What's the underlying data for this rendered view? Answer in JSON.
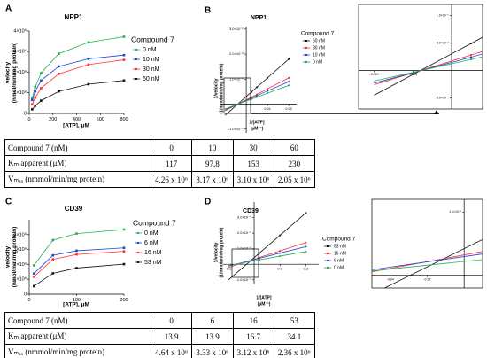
{
  "chart_data": [
    {
      "type": "line",
      "label": "A",
      "title": "NPP1",
      "xlabel": [
        "[ATP], μM"
      ],
      "ylabel": [
        "velocity",
        "(nmol/min/mg protein)"
      ],
      "legend_title": "Compound 7",
      "x": [
        25,
        50,
        100,
        250,
        500,
        800
      ],
      "series": [
        {
          "name": "0 nM",
          "color": "#22b14c",
          "values": [
            750000,
            1280000,
            1960000,
            2900000,
            3450000,
            3720000
          ]
        },
        {
          "name": "10 nM",
          "color": "#1f3fe0",
          "values": [
            650000,
            1070000,
            1600000,
            2280000,
            2650000,
            2830000
          ]
        },
        {
          "name": "30 nM",
          "color": "#ff3030",
          "values": [
            440000,
            760000,
            1230000,
            1920000,
            2370000,
            2600000
          ]
        },
        {
          "name": "60 nM",
          "color": "#111111",
          "values": [
            200000,
            370000,
            620000,
            1070000,
            1420000,
            1600000
          ]
        }
      ],
      "xlim": [
        0,
        800
      ],
      "xticks": [
        0,
        200,
        400,
        600,
        800
      ],
      "ylim": [
        0,
        4000000
      ],
      "yticks": [
        0,
        {
          "value": 1000000,
          "label": "1×10⁶"
        },
        {
          "value": 2000000,
          "label": "2×10⁶"
        },
        {
          "value": 3000000,
          "label": "3×10⁶"
        },
        {
          "value": 4000000,
          "label": "4×10⁶"
        }
      ]
    },
    {
      "type": "line",
      "label": "B",
      "title": "NPP1",
      "xlabel": [
        "1/[ATP]",
        "(μM⁻¹)"
      ],
      "ylabel": [
        "1/velocity",
        "(1/nmol/min/mg protein)"
      ],
      "legend_title": "Compound 7",
      "x": [
        -0.01,
        0.0025,
        0.005,
        0.01,
        0.02
      ],
      "series": [
        {
          "name": "60 nM",
          "color": "#111111",
          "values": [
            -4.5e-07,
            4.9e-07,
            6.8e-07,
            1.05e-06,
            1.8e-06
          ]
        },
        {
          "name": "30 nM",
          "color": "#ff3030",
          "values": [
            -2.6e-07,
            2.8e-07,
            3.9e-07,
            6.1e-07,
            1.05e-06
          ]
        },
        {
          "name": "10 nM",
          "color": "#1f3fe0",
          "values": [
            -2.3e-07,
            2.4e-07,
            3.4e-07,
            5.3e-07,
            9e-07
          ]
        },
        {
          "name": "0 nM",
          "color": "#22b14c",
          "values": [
            -1.9e-07,
            2e-07,
            2.8e-07,
            4.4e-07,
            7.5e-07
          ]
        }
      ],
      "xlim": [
        -0.0117,
        0.0237
      ],
      "xticks": [
        0.01,
        0.02
      ],
      "ylim": [
        -1.15e-06,
        3.1e-06
      ],
      "yticks": [
        {
          "value": -1e-06,
          "label": "-1.0×10⁻⁶"
        },
        {
          "value": 1e-06,
          "label": "1.0×10⁻⁶"
        },
        {
          "value": 2e-06,
          "label": "2.0×10⁻⁶"
        },
        {
          "value": 3e-06,
          "label": "3.0×10⁻⁶"
        }
      ],
      "inset": {
        "xlim": [
          -0.012,
          0.004
        ],
        "ylim": [
          -7e-07,
          1.2e-06
        ],
        "xticks": [
          {
            "value": -0.01,
            "label": "-0.010"
          },
          {
            "value": -0.005,
            "label": "-0.005"
          }
        ],
        "yticks": [
          {
            "value": 1e-06,
            "label": "1.0×10⁻⁶"
          },
          {
            "value": 5e-07,
            "label": "5.0×10⁻⁷"
          },
          {
            "value": -5e-07,
            "label": "-5.0×10⁻⁷"
          }
        ]
      }
    },
    {
      "type": "line",
      "label": "C",
      "title": "CD39",
      "xlabel": [
        "[ATP], μM"
      ],
      "ylabel": [
        "velocity",
        "(nmol/min/mg protein)"
      ],
      "legend_title": "Compound 7",
      "x": [
        10,
        50,
        100,
        200
      ],
      "series": [
        {
          "name": "0 nM",
          "color": "#22b14c",
          "values": [
            1940000,
            3630000,
            4070000,
            4340000
          ]
        },
        {
          "name": "6 nM",
          "color": "#1f3fe0",
          "values": [
            1390000,
            2610000,
            2920000,
            3110000
          ]
        },
        {
          "name": "16 nM",
          "color": "#ff3030",
          "values": [
            1170000,
            2340000,
            2670000,
            2880000
          ]
        },
        {
          "name": "53 nM",
          "color": "#111111",
          "values": [
            540000,
            1400000,
            1760000,
            2020000
          ]
        }
      ],
      "xlim": [
        0,
        200
      ],
      "xticks": [
        0,
        100,
        200
      ],
      "ylim": [
        0,
        5000000
      ],
      "yticks": [
        0,
        {
          "value": 1000000,
          "label": "1×10⁶"
        },
        {
          "value": 2000000,
          "label": "2×10⁶"
        },
        {
          "value": 3000000,
          "label": "3×10⁶"
        },
        {
          "value": 4000000,
          "label": "4×10⁶"
        }
      ]
    },
    {
      "type": "line",
      "label": "D",
      "title": "CD39",
      "xlabel": [
        "1/[ATP]",
        "(μM⁻¹)"
      ],
      "ylabel": [
        "1/velocity",
        "(1/nmol/min/mg protein)"
      ],
      "legend_title": "Compound 7",
      "x": [
        -0.1,
        0.02,
        0.1,
        0.2
      ],
      "series": [
        {
          "name": "53 nM",
          "color": "#111111",
          "values": [
            -1.02e-06,
            7.1e-07,
            1.86e-06,
            3.3e-06
          ]
        },
        {
          "name": "16 nM",
          "color": "#ff3030",
          "values": [
            -2.1e-07,
            4.3e-07,
            8.6e-07,
            1.39e-06
          ]
        },
        {
          "name": "6 nM",
          "color": "#1f3fe0",
          "values": [
            -1.2e-07,
            3.8e-07,
            7.2e-07,
            1.13e-06
          ]
        },
        {
          "name": "0 nM",
          "color": "#22b14c",
          "values": [
            -8e-08,
            2.8e-07,
            5.2e-07,
            8.2e-07
          ]
        }
      ],
      "xlim": [
        -0.12,
        0.25
      ],
      "xticks": [
        -0.1,
        0.1,
        0.2
      ],
      "ylim": [
        -1.3e-06,
        4e-06
      ],
      "yticks": [
        {
          "value": -1e-06,
          "label": "-1.0×10⁻⁶"
        },
        {
          "value": 1e-06,
          "label": "1.0×10⁻⁶"
        },
        {
          "value": 2e-06,
          "label": "2.0×10⁻⁶"
        },
        {
          "value": 3e-06,
          "label": "3.0×10⁻⁶"
        }
      ],
      "inset": {
        "xlim": [
          -0.05,
          0.01
        ],
        "ylim": [
          -2e-07,
          1.2e-06
        ],
        "xticks": [
          -0.04,
          -0.02
        ],
        "yticks": [
          {
            "value": 1e-06,
            "label": "1.0×10⁻⁶"
          }
        ]
      }
    }
  ],
  "tables": [
    {
      "header": [
        "Compound 7 (nM)",
        0,
        10,
        30,
        60
      ],
      "rows": [
        [
          "Kₘ apparent (μM)",
          117,
          97.8,
          153,
          230
        ],
        [
          "Vₘₐₓ (nmmol/min/mg protein)",
          "4.26 x 10⁶",
          "3.17 x 10⁶",
          "3.10 x 10⁶",
          "2.05 x 10⁶"
        ]
      ]
    },
    {
      "header": [
        "Compound 7 (nM)",
        0,
        6,
        16,
        53
      ],
      "rows": [
        [
          "Kₘ apparent (μM)",
          13.9,
          13.9,
          16.7,
          34.1
        ],
        [
          "Vₘₐₓ (nmmol/min/mg protein)",
          "4.64 x 10⁶",
          "3.33 x 10⁶",
          "3.12 x 10⁶",
          "2.36 x 10⁶"
        ]
      ]
    }
  ]
}
